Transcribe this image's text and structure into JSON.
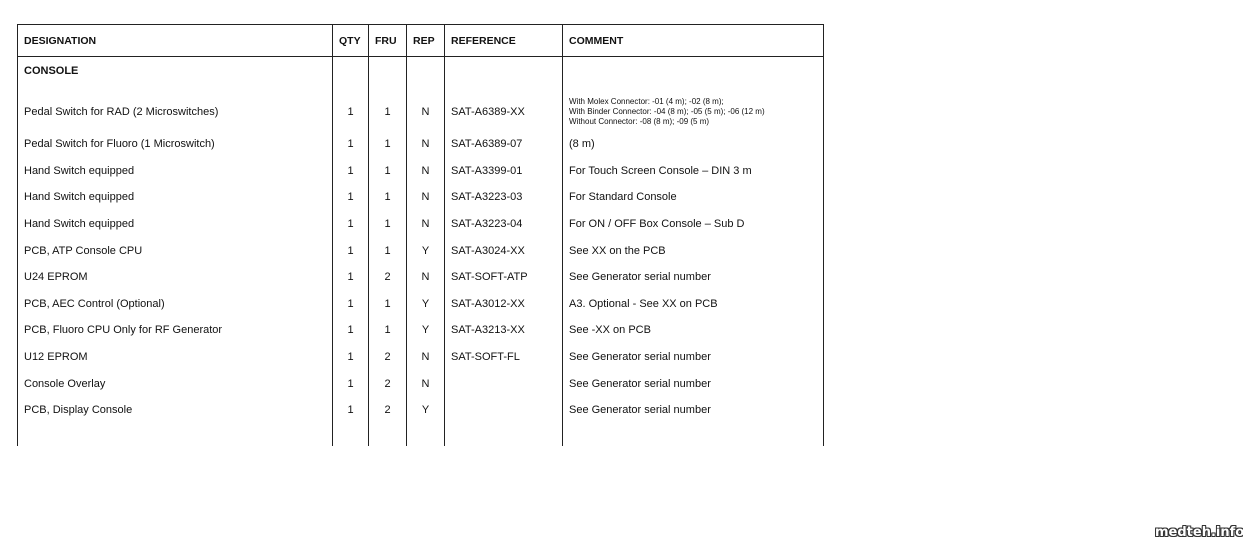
{
  "headers": {
    "designation": "DESIGNATION",
    "qty": "QTY",
    "fru": "FRU",
    "rep": "REP",
    "reference": "REFERENCE",
    "comment": "COMMENT"
  },
  "section": "CONSOLE",
  "first_row": {
    "designation": "Pedal Switch for RAD (2 Microswitches)",
    "qty": "1",
    "fru": "1",
    "rep": "N",
    "reference": "SAT-A6389-XX",
    "comment_lines": [
      "With Molex Connector: -01 (4 m); -02 (8 m);",
      "With Binder Connector: -04 (8 m); -05 (5 m); -06 (12 m)",
      "Without Connector:  -08 (8 m); -09 (5 m)"
    ]
  },
  "rows": [
    {
      "designation": "Pedal Switch for Fluoro (1 Microswitch)",
      "qty": "1",
      "fru": "1",
      "rep": "N",
      "reference": "SAT-A6389-07",
      "comment": "(8 m)"
    },
    {
      "designation": "Hand Switch equipped",
      "qty": "1",
      "fru": "1",
      "rep": "N",
      "reference": "SAT-A3399-01",
      "comment": "For Touch Screen Console – DIN 3 m"
    },
    {
      "designation": "Hand Switch equipped",
      "qty": "1",
      "fru": "1",
      "rep": "N",
      "reference": "SAT-A3223-03",
      "comment": "For Standard Console"
    },
    {
      "designation": "Hand Switch equipped",
      "qty": "1",
      "fru": "1",
      "rep": "N",
      "reference": "SAT-A3223-04",
      "comment": "For ON / OFF Box Console – Sub D"
    },
    {
      "designation": "PCB, ATP Console CPU",
      "qty": "1",
      "fru": "1",
      "rep": "Y",
      "reference": "SAT-A3024-XX",
      "comment": "See XX on the PCB"
    },
    {
      "designation": "U24 EPROM",
      "qty": "1",
      "fru": "2",
      "rep": "N",
      "reference": "SAT-SOFT-ATP",
      "comment": "See Generator serial number"
    },
    {
      "designation": "PCB, AEC Control (Optional)",
      "qty": "1",
      "fru": "1",
      "rep": "Y",
      "reference": "SAT-A3012-XX",
      "comment": "A3. Optional - See XX on PCB"
    },
    {
      "designation": "PCB, Fluoro CPU Only for RF Generator",
      "qty": "1",
      "fru": "1",
      "rep": "Y",
      "reference": "SAT-A3213-XX",
      "comment": "See -XX on PCB"
    },
    {
      "designation": "U12 EPROM",
      "qty": "1",
      "fru": "2",
      "rep": "N",
      "reference": "SAT-SOFT-FL",
      "comment": "See Generator serial number"
    },
    {
      "designation": "Console Overlay",
      "qty": "1",
      "fru": "2",
      "rep": "N",
      "reference": "",
      "comment": "See Generator serial number"
    },
    {
      "designation": "PCB, Display Console",
      "qty": "1",
      "fru": "2",
      "rep": "Y",
      "reference": "",
      "comment": "See Generator serial number"
    }
  ],
  "watermark": "medteh.info"
}
